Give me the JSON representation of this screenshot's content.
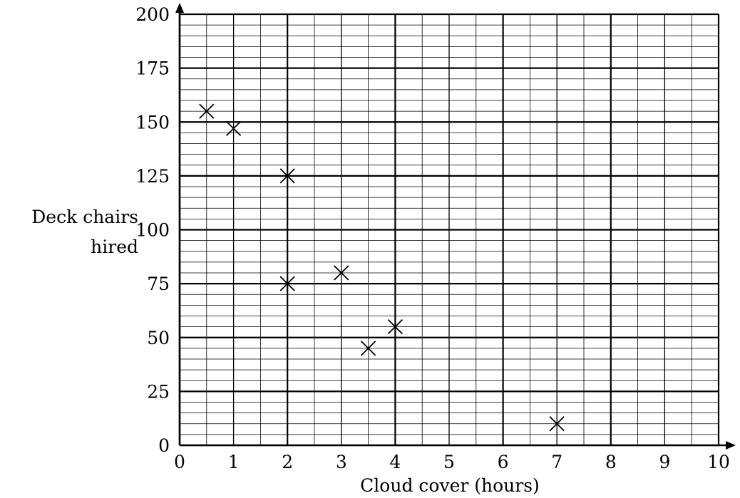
{
  "chart_data": {
    "type": "scatter",
    "title": "",
    "xlabel": "Cloud cover (hours)",
    "ylabel_line1": "Deck chairs",
    "ylabel_line2": "hired",
    "xlim": [
      0,
      10
    ],
    "ylim": [
      0,
      200
    ],
    "x_ticks": [
      0,
      1,
      2,
      3,
      4,
      5,
      6,
      7,
      8,
      9,
      10
    ],
    "y_ticks": [
      0,
      25,
      50,
      75,
      100,
      125,
      150,
      175,
      200
    ],
    "grid": true,
    "marker": "cross",
    "points": [
      {
        "x": 0.5,
        "y": 155
      },
      {
        "x": 1,
        "y": 147
      },
      {
        "x": 2,
        "y": 125
      },
      {
        "x": 2,
        "y": 75
      },
      {
        "x": 3,
        "y": 80
      },
      {
        "x": 3.5,
        "y": 45
      },
      {
        "x": 4,
        "y": 55
      },
      {
        "x": 7,
        "y": 10
      }
    ]
  }
}
